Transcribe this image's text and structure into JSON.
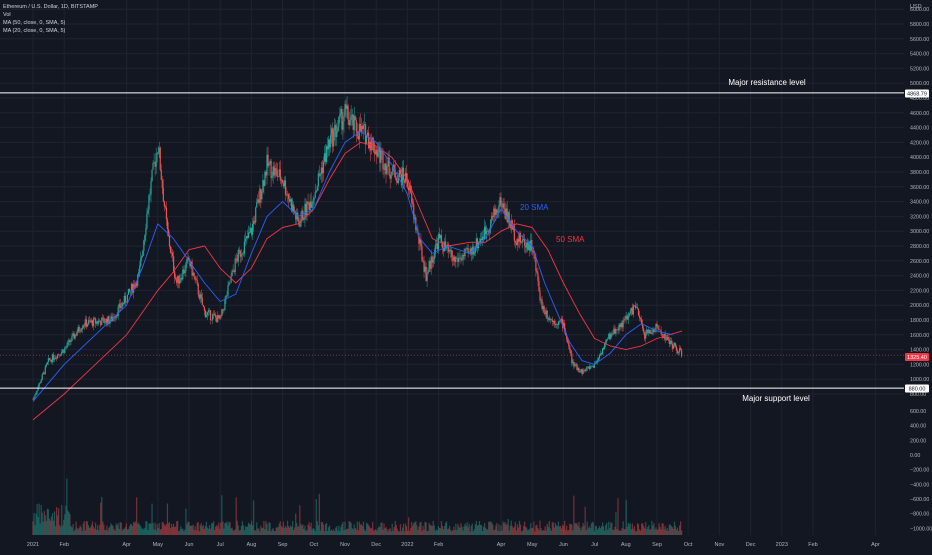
{
  "legend": {
    "symbol": "Ethereum / U.S. Dollar, 1D, BITSTAMP",
    "vol": "Vol",
    "ma50": "MA (50, close, 0, SMA, 5)",
    "ma20": "MA (20, close, 0, SMA, 5)"
  },
  "annotations": {
    "resistance_label": "Major resistance level",
    "support_label": "Major support level",
    "sma20_label": "20 SMA",
    "sma50_label": "50 SMA",
    "resistance_value": "4868.79",
    "support_value": "880.00",
    "last_price": "1325.40",
    "currency": "USD"
  },
  "colors": {
    "background": "#131722",
    "grid": "#1f2330",
    "up": "#26a69a",
    "down": "#ef5350",
    "sma20": "#2962ff",
    "sma50": "#f23645",
    "level_line": "#ffffff",
    "axis_text": "#b2b5be"
  },
  "chart_data": {
    "type": "candlestick",
    "title": "Ethereum / U.S. Dollar, 1D, BITSTAMP",
    "price_axis_ticks": [
      6000,
      5800,
      5600,
      5400,
      5200,
      5000,
      4800,
      4600,
      4400,
      4200,
      4000,
      3800,
      3600,
      3400,
      3200,
      3000,
      2800,
      2600,
      2400,
      2200,
      2000,
      1800,
      1600,
      1400,
      1200,
      1000,
      800
    ],
    "price_axis_labels": [
      "6000.00",
      "5800.00",
      "5600.00",
      "5400.00",
      "5200.00",
      "5000.00",
      "4800.00",
      "4600.00",
      "4400.00",
      "4200.00",
      "4000.00",
      "3800.00",
      "3600.00",
      "3400.00",
      "3200.00",
      "3000.00",
      "2800.00",
      "2600.00",
      "2400.00",
      "2200.00",
      "2000.00",
      "1800.00",
      "1600.00",
      "1400.00",
      "1200.00",
      "1000.00",
      "800.00"
    ],
    "volume_axis_ticks": [
      600,
      400,
      200,
      0,
      -200,
      -400,
      -600,
      -800,
      -1000
    ],
    "volume_axis_labels": [
      "600.00",
      "400.00",
      "200.00",
      "0.00",
      "−200.00",
      "−400.00",
      "−600.00",
      "−800.00",
      "−1000.00"
    ],
    "time_axis_labels": [
      "2021",
      "Feb",
      "Apr",
      "May",
      "Jun",
      "Jul",
      "Aug",
      "Sep",
      "Oct",
      "Nov",
      "Dec",
      "2022",
      "Feb",
      "Apr",
      "May",
      "Jun",
      "Jul",
      "Aug",
      "Sep",
      "Oct",
      "Nov",
      "Dec",
      "2023",
      "Feb",
      "Apr"
    ],
    "time_axis_months": [
      0,
      1,
      3,
      4,
      5,
      6,
      7,
      8,
      9,
      10,
      11,
      12,
      13,
      15,
      16,
      17,
      18,
      19,
      20,
      21,
      22,
      23,
      24,
      25,
      27
    ],
    "price_path": [
      [
        0,
        730
      ],
      [
        0.5,
        1250
      ],
      [
        1,
        1400
      ],
      [
        1.6,
        1750
      ],
      [
        2.5,
        1800
      ],
      [
        3,
        2100
      ],
      [
        3.4,
        2400
      ],
      [
        3.7,
        3400
      ],
      [
        4.0,
        4200
      ],
      [
        4.3,
        3000
      ],
      [
        4.6,
        2300
      ],
      [
        5,
        2600
      ],
      [
        5.5,
        1900
      ],
      [
        6,
        1800
      ],
      [
        6.5,
        2600
      ],
      [
        7,
        3000
      ],
      [
        7.5,
        3900
      ],
      [
        8,
        3700
      ],
      [
        8.5,
        3100
      ],
      [
        9,
        3500
      ],
      [
        9.5,
        4200
      ],
      [
        10,
        4600
      ],
      [
        10.3,
        4400
      ],
      [
        10.7,
        4300
      ],
      [
        11,
        4100
      ],
      [
        11.5,
        3800
      ],
      [
        12,
        3700
      ],
      [
        12.3,
        3000
      ],
      [
        12.6,
        2400
      ],
      [
        13,
        2900
      ],
      [
        13.5,
        2600
      ],
      [
        14,
        2700
      ],
      [
        14.5,
        3000
      ],
      [
        15,
        3400
      ],
      [
        15.5,
        2900
      ],
      [
        16,
        2800
      ],
      [
        16.3,
        2000
      ],
      [
        16.6,
        1800
      ],
      [
        17,
        1750
      ],
      [
        17.3,
        1200
      ],
      [
        17.6,
        1100
      ],
      [
        18,
        1200
      ],
      [
        18.5,
        1600
      ],
      [
        19,
        1800
      ],
      [
        19.3,
        2000
      ],
      [
        19.6,
        1600
      ],
      [
        20,
        1700
      ],
      [
        20.4,
        1500
      ],
      [
        20.8,
        1340
      ]
    ],
    "sma20_path": [
      [
        0,
        700
      ],
      [
        1,
        1200
      ],
      [
        2,
        1600
      ],
      [
        3,
        2000
      ],
      [
        3.5,
        2500
      ],
      [
        4,
        3100
      ],
      [
        4.5,
        2900
      ],
      [
        5,
        2600
      ],
      [
        5.5,
        2300
      ],
      [
        6,
        2050
      ],
      [
        6.5,
        2150
      ],
      [
        7,
        2700
      ],
      [
        7.5,
        3200
      ],
      [
        8,
        3400
      ],
      [
        8.5,
        3200
      ],
      [
        9,
        3300
      ],
      [
        9.5,
        3800
      ],
      [
        10,
        4200
      ],
      [
        10.5,
        4350
      ],
      [
        11,
        4200
      ],
      [
        11.5,
        3900
      ],
      [
        12,
        3500
      ],
      [
        12.4,
        2900
      ],
      [
        12.8,
        2700
      ],
      [
        13.3,
        2800
      ],
      [
        14,
        2700
      ],
      [
        14.5,
        2900
      ],
      [
        15,
        3300
      ],
      [
        15.5,
        3000
      ],
      [
        16,
        2800
      ],
      [
        16.4,
        2300
      ],
      [
        16.8,
        1900
      ],
      [
        17.2,
        1500
      ],
      [
        17.6,
        1250
      ],
      [
        18,
        1200
      ],
      [
        18.5,
        1350
      ],
      [
        19,
        1600
      ],
      [
        19.5,
        1750
      ],
      [
        20,
        1650
      ],
      [
        20.5,
        1600
      ]
    ],
    "sma50_path": [
      [
        0,
        450
      ],
      [
        1,
        800
      ],
      [
        2,
        1200
      ],
      [
        3,
        1600
      ],
      [
        3.5,
        1900
      ],
      [
        4,
        2200
      ],
      [
        4.5,
        2450
      ],
      [
        5,
        2750
      ],
      [
        5.5,
        2800
      ],
      [
        6,
        2500
      ],
      [
        6.5,
        2300
      ],
      [
        7,
        2500
      ],
      [
        7.5,
        2900
      ],
      [
        8,
        3050
      ],
      [
        8.5,
        3100
      ],
      [
        9,
        3300
      ],
      [
        9.5,
        3700
      ],
      [
        10,
        4050
      ],
      [
        10.5,
        4200
      ],
      [
        11,
        4150
      ],
      [
        11.5,
        4000
      ],
      [
        12,
        3700
      ],
      [
        12.4,
        3300
      ],
      [
        12.8,
        2900
      ],
      [
        13.3,
        2800
      ],
      [
        14,
        2850
      ],
      [
        14.5,
        2850
      ],
      [
        15,
        3000
      ],
      [
        15.5,
        3100
      ],
      [
        16,
        3050
      ],
      [
        16.5,
        2750
      ],
      [
        17,
        2300
      ],
      [
        17.5,
        1900
      ],
      [
        18,
        1550
      ],
      [
        18.5,
        1450
      ],
      [
        19,
        1400
      ],
      [
        19.5,
        1450
      ],
      [
        20,
        1550
      ],
      [
        20.8,
        1650
      ]
    ],
    "resistance_level": 4868.79,
    "support_level": 880.0,
    "last_price": 1325.4
  }
}
